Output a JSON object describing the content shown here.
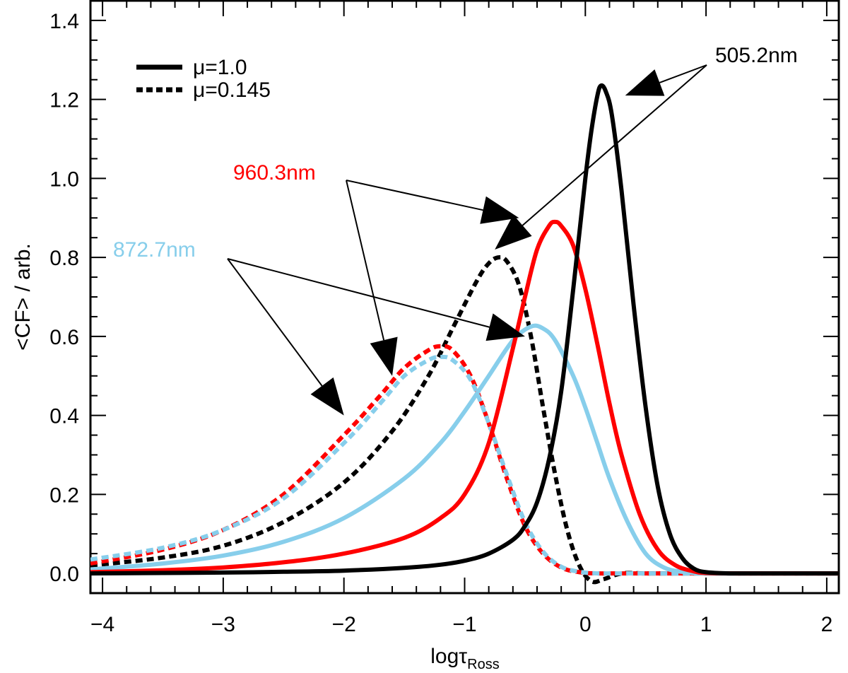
{
  "chart_data": {
    "type": "line",
    "title": "",
    "xlabel_main": "logτ",
    "xlabel_sub": "Ross",
    "ylabel": "<CF> / arb.",
    "xlim": [
      -4.1,
      2.1
    ],
    "ylim": [
      -0.05,
      1.45
    ],
    "xticks": [
      -4,
      -3,
      -2,
      -1,
      0,
      1,
      2
    ],
    "xtick_labels": [
      "−4",
      "−3",
      "−2",
      "−1",
      "0",
      "1",
      "2"
    ],
    "yticks": [
      0.0,
      0.2,
      0.4,
      0.6,
      0.8,
      1.0,
      1.2,
      1.4
    ],
    "ytick_labels": [
      "0.0",
      "0.2",
      "0.4",
      "0.6",
      "0.8",
      "1.0",
      "1.2",
      "1.4"
    ],
    "legend": {
      "placement": "top-left",
      "entries": [
        {
          "label": "μ=1.0",
          "style": "solid"
        },
        {
          "label": "μ=0.145",
          "style": "dotted"
        }
      ]
    },
    "series": [
      {
        "name": "505.2nm μ=1.0",
        "color": "#000000",
        "style": "solid",
        "x": [
          -4.1,
          -3.5,
          -3.0,
          -2.5,
          -2.0,
          -1.5,
          -1.2,
          -1.0,
          -0.8,
          -0.6,
          -0.5,
          -0.4,
          -0.3,
          -0.2,
          -0.1,
          0.0,
          0.05,
          0.1,
          0.13,
          0.17,
          0.22,
          0.3,
          0.4,
          0.5,
          0.6,
          0.7,
          0.8,
          0.9,
          1.0,
          1.2,
          1.5,
          2.1
        ],
        "y": [
          0.0,
          0.001,
          0.002,
          0.004,
          0.007,
          0.014,
          0.022,
          0.032,
          0.05,
          0.085,
          0.12,
          0.18,
          0.29,
          0.46,
          0.72,
          1.0,
          1.12,
          1.21,
          1.235,
          1.22,
          1.16,
          0.97,
          0.68,
          0.42,
          0.22,
          0.1,
          0.04,
          0.012,
          0.003,
          0.0,
          0.0,
          0.0
        ]
      },
      {
        "name": "505.2nm μ=0.145",
        "color": "#000000",
        "style": "dotted",
        "x": [
          -4.1,
          -3.5,
          -3.0,
          -2.5,
          -2.0,
          -1.6,
          -1.3,
          -1.1,
          -0.9,
          -0.8,
          -0.72,
          -0.65,
          -0.55,
          -0.45,
          -0.35,
          -0.25,
          -0.15,
          -0.05,
          0.05,
          0.15,
          0.3,
          0.5,
          0.8,
          1.0,
          1.5,
          2.1
        ],
        "y": [
          0.02,
          0.04,
          0.07,
          0.13,
          0.23,
          0.36,
          0.5,
          0.62,
          0.74,
          0.785,
          0.8,
          0.79,
          0.73,
          0.6,
          0.42,
          0.25,
          0.11,
          0.02,
          -0.02,
          -0.015,
          0.0,
          0.0,
          0.0,
          0.0,
          0.0,
          0.0
        ]
      },
      {
        "name": "960.3nm μ=1.0",
        "color": "#ff0000",
        "style": "solid",
        "x": [
          -4.1,
          -3.5,
          -3.0,
          -2.5,
          -2.0,
          -1.5,
          -1.2,
          -1.0,
          -0.8,
          -0.6,
          -0.5,
          -0.4,
          -0.3,
          -0.25,
          -0.2,
          -0.1,
          0.0,
          0.1,
          0.2,
          0.3,
          0.45,
          0.6,
          0.75,
          0.9,
          1.0,
          1.3,
          2.1
        ],
        "y": [
          0.003,
          0.008,
          0.015,
          0.028,
          0.05,
          0.09,
          0.14,
          0.2,
          0.33,
          0.57,
          0.7,
          0.82,
          0.88,
          0.89,
          0.88,
          0.83,
          0.72,
          0.58,
          0.43,
          0.3,
          0.15,
          0.06,
          0.02,
          0.005,
          0.001,
          0.0,
          0.0
        ]
      },
      {
        "name": "960.3nm μ=0.145",
        "color": "#ff0000",
        "style": "dotted",
        "x": [
          -4.1,
          -3.5,
          -3.0,
          -2.5,
          -2.0,
          -1.7,
          -1.5,
          -1.3,
          -1.2,
          -1.1,
          -0.95,
          -0.8,
          -0.65,
          -0.5,
          -0.35,
          -0.2,
          -0.05,
          0.1,
          0.3,
          0.6,
          1.0,
          2.1
        ],
        "y": [
          0.025,
          0.06,
          0.11,
          0.2,
          0.35,
          0.45,
          0.52,
          0.565,
          0.575,
          0.565,
          0.5,
          0.38,
          0.24,
          0.12,
          0.05,
          0.015,
          0.003,
          0.0,
          0.0,
          0.0,
          0.0,
          0.0
        ]
      },
      {
        "name": "872.7nm μ=1.0",
        "color": "#87ceeb",
        "style": "solid",
        "x": [
          -4.1,
          -3.5,
          -3.0,
          -2.5,
          -2.0,
          -1.5,
          -1.2,
          -1.0,
          -0.8,
          -0.6,
          -0.45,
          -0.35,
          -0.25,
          -0.1,
          0.0,
          0.1,
          0.2,
          0.35,
          0.5,
          0.65,
          0.8,
          1.0,
          1.5,
          2.1
        ],
        "y": [
          0.01,
          0.025,
          0.045,
          0.08,
          0.14,
          0.24,
          0.33,
          0.41,
          0.5,
          0.59,
          0.625,
          0.62,
          0.59,
          0.5,
          0.42,
          0.33,
          0.24,
          0.13,
          0.05,
          0.015,
          0.004,
          0.0,
          0.0,
          0.0
        ]
      },
      {
        "name": "872.7nm μ=0.145",
        "color": "#87ceeb",
        "style": "dotted",
        "x": [
          -4.1,
          -3.5,
          -3.0,
          -2.5,
          -2.0,
          -1.7,
          -1.5,
          -1.3,
          -1.2,
          -1.1,
          -0.95,
          -0.8,
          -0.65,
          -0.5,
          -0.35,
          -0.2,
          -0.05,
          0.1,
          0.3,
          0.6,
          1.0,
          2.1
        ],
        "y": [
          0.035,
          0.065,
          0.11,
          0.19,
          0.33,
          0.43,
          0.5,
          0.54,
          0.548,
          0.54,
          0.49,
          0.38,
          0.25,
          0.13,
          0.055,
          0.017,
          0.004,
          0.0,
          0.0,
          0.0,
          0.0,
          0.0
        ]
      }
    ],
    "annotations": [
      {
        "text": "505.2nm",
        "color": "#000000",
        "arrows_to": [
          {
            "x": 0.33,
            "y": 1.21
          },
          {
            "x": -0.75,
            "y": 0.82
          }
        ]
      },
      {
        "text": "960.3nm",
        "color": "#ff0000",
        "arrows_to": [
          {
            "x": -0.55,
            "y": 0.9
          },
          {
            "x": -1.6,
            "y": 0.5
          }
        ]
      },
      {
        "text": "872.7nm",
        "color": "#87ceeb",
        "arrows_to": [
          {
            "x": -0.5,
            "y": 0.6
          },
          {
            "x": -2.0,
            "y": 0.4
          }
        ]
      }
    ]
  }
}
